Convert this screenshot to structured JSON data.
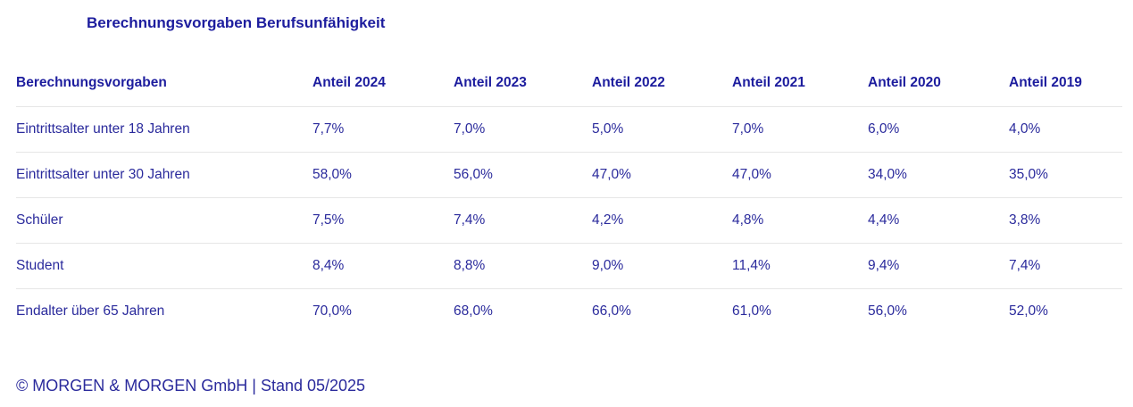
{
  "page": {
    "title": "Berechnungsvorgaben Berufsunfähigkeit",
    "footer": "© MORGEN & MORGEN GmbH | Stand 05/2025"
  },
  "colors": {
    "heading_navy": "#1d1d9e",
    "body_navy": "#2a2a9c",
    "divider_gray": "#e6e6e6",
    "background": "#ffffff"
  },
  "chart_data": {
    "type": "table",
    "title": "Berechnungsvorgaben Berufsunfähigkeit",
    "columns": [
      "Berechnungsvorgaben",
      "Anteil 2024",
      "Anteil 2023",
      "Anteil 2022",
      "Anteil 2021",
      "Anteil 2020",
      "Anteil 2019"
    ],
    "rows": [
      [
        "Eintrittsalter unter 18 Jahren",
        "7,7%",
        "7,0%",
        "5,0%",
        "7,0%",
        "6,0%",
        "4,0%"
      ],
      [
        "Eintrittsalter unter 30 Jahren",
        "58,0%",
        "56,0%",
        "47,0%",
        "47,0%",
        "34,0%",
        "35,0%"
      ],
      [
        "Schüler",
        "7,5%",
        "7,4%",
        "4,2%",
        "4,8%",
        "4,4%",
        "3,8%"
      ],
      [
        "Student",
        "8,4%",
        "8,8%",
        "9,0%",
        "11,4%",
        "9,4%",
        "7,4%"
      ],
      [
        "Endalter über 65 Jahren",
        "70,0%",
        "68,0%",
        "66,0%",
        "61,0%",
        "56,0%",
        "52,0%"
      ]
    ],
    "categories": [
      "Anteil 2024",
      "Anteil 2023",
      "Anteil 2022",
      "Anteil 2021",
      "Anteil 2020",
      "Anteil 2019"
    ],
    "series": [
      {
        "name": "Eintrittsalter unter 18 Jahren",
        "values": [
          7.7,
          7.0,
          5.0,
          7.0,
          6.0,
          4.0
        ]
      },
      {
        "name": "Eintrittsalter unter 30 Jahren",
        "values": [
          58.0,
          56.0,
          47.0,
          47.0,
          34.0,
          35.0
        ]
      },
      {
        "name": "Schüler",
        "values": [
          7.5,
          7.4,
          4.2,
          4.8,
          4.4,
          3.8
        ]
      },
      {
        "name": "Student",
        "values": [
          8.4,
          8.8,
          9.0,
          11.4,
          9.4,
          7.4
        ]
      },
      {
        "name": "Endalter über 65 Jahren",
        "values": [
          70.0,
          68.0,
          66.0,
          61.0,
          56.0,
          52.0
        ]
      }
    ],
    "unit": "percent",
    "layout": {
      "grid": "horizontal-row-dividers",
      "legend": "none",
      "header_style": "bold-navy"
    }
  }
}
